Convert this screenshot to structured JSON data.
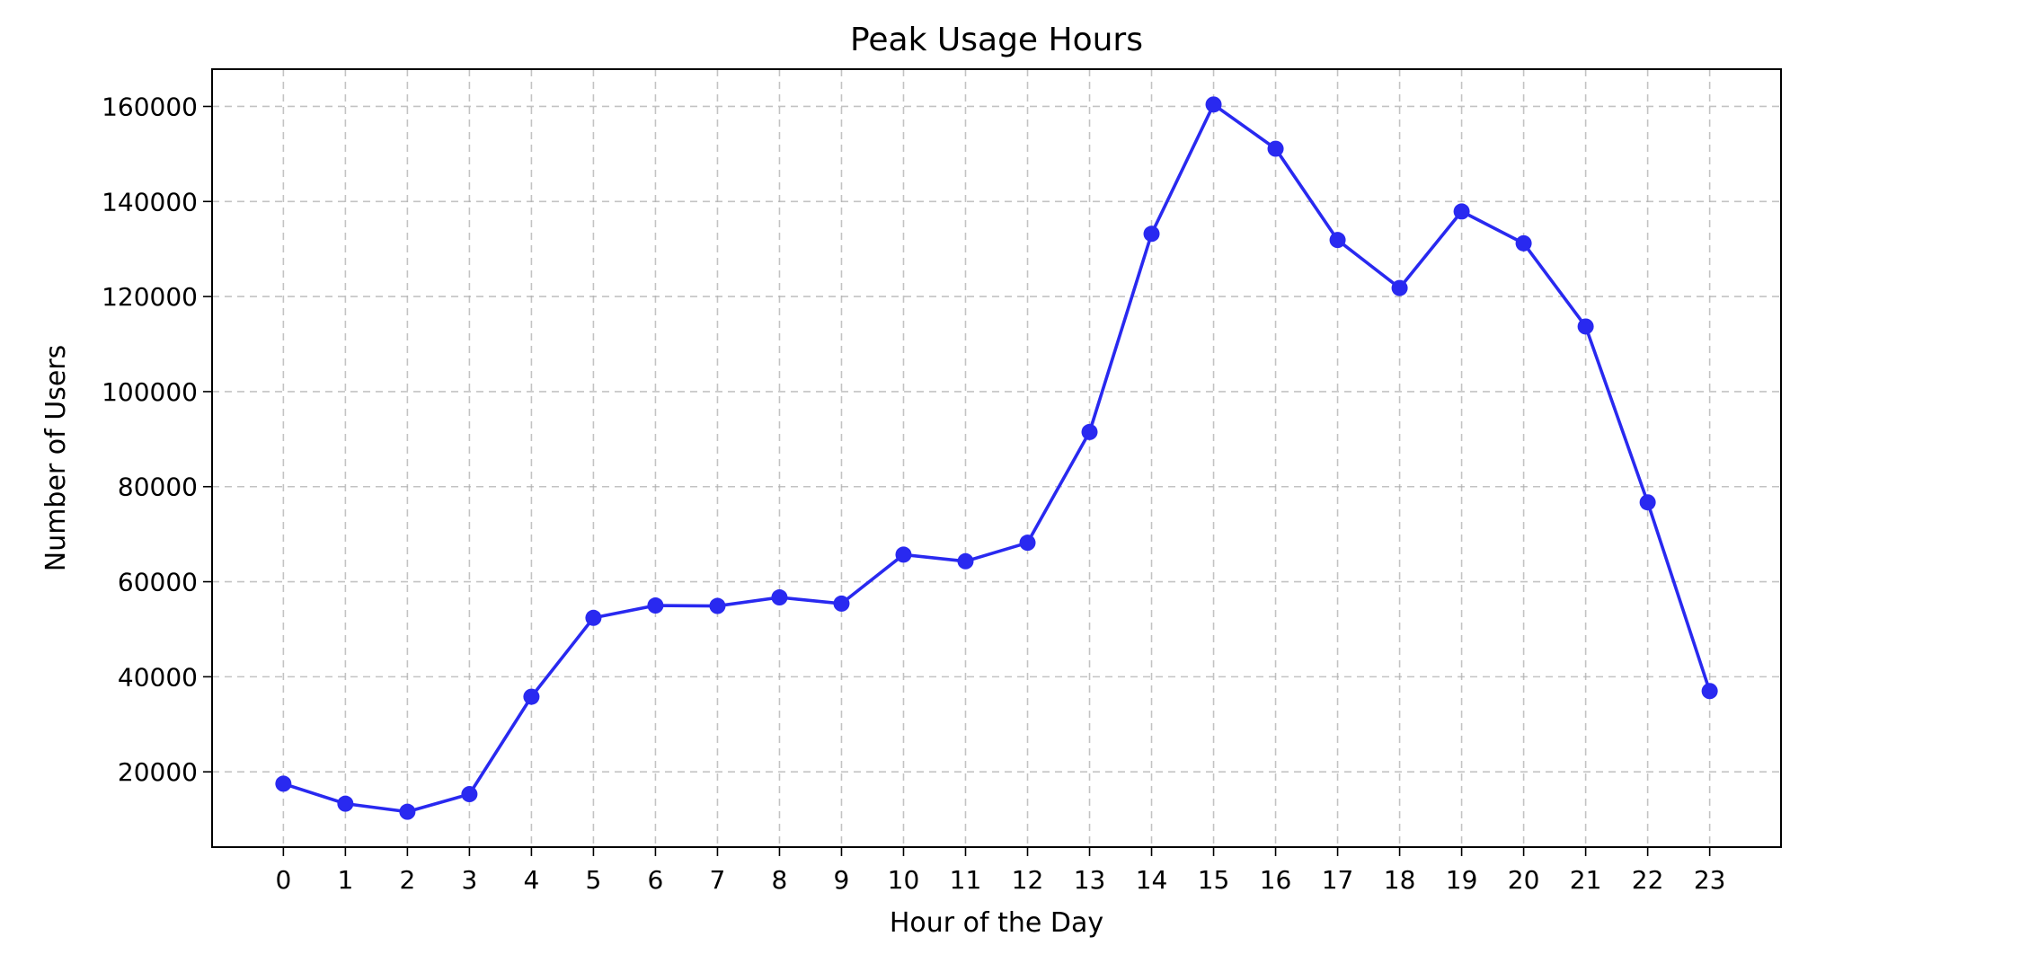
{
  "chart_data": {
    "type": "line",
    "title": "Peak Usage Hours",
    "xlabel": "Hour of the Day",
    "ylabel": "Number of Users",
    "x": [
      0,
      1,
      2,
      3,
      4,
      5,
      6,
      7,
      8,
      9,
      10,
      11,
      12,
      13,
      14,
      15,
      16,
      17,
      18,
      19,
      20,
      21,
      22,
      23
    ],
    "x_tick_labels": [
      "0",
      "1",
      "2",
      "3",
      "4",
      "5",
      "6",
      "7",
      "8",
      "9",
      "10",
      "11",
      "12",
      "13",
      "14",
      "15",
      "16",
      "17",
      "18",
      "19",
      "20",
      "21",
      "22",
      "23"
    ],
    "xlim": [
      -1.15,
      24.15
    ],
    "series": [
      {
        "values": [
          17500,
          13300,
          11600,
          15300,
          35800,
          52400,
          55000,
          54900,
          56700,
          55400,
          65700,
          64300,
          68200,
          91500,
          133200,
          160400,
          151100,
          131900,
          121800,
          137900,
          131200,
          113700,
          76700,
          37000
        ],
        "color": "#2929f0",
        "marker": "circle"
      }
    ],
    "y_ticks": [
      20000,
      40000,
      60000,
      80000,
      100000,
      120000,
      140000,
      160000
    ],
    "y_tick_labels": [
      "20000",
      "40000",
      "60000",
      "80000",
      "100000",
      "120000",
      "140000",
      "160000"
    ],
    "ylim": [
      4160,
      167840
    ],
    "grid": true,
    "legend": "none"
  }
}
